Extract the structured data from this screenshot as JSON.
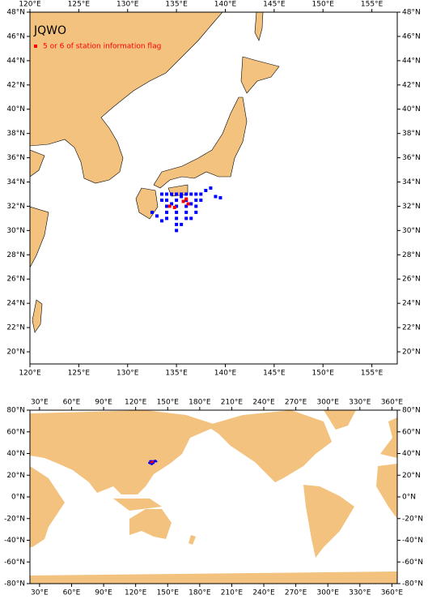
{
  "chart_data": [
    {
      "type": "map",
      "title": "JQWO",
      "xlim": [
        120,
        157.6
      ],
      "ylim": [
        19,
        48
      ],
      "xticks": [
        {
          "value": 120,
          "label": "120°E"
        },
        {
          "value": 125,
          "label": "125°E"
        },
        {
          "value": 130,
          "label": "130°E"
        },
        {
          "value": 135,
          "label": "135°E"
        },
        {
          "value": 140,
          "label": "140°E"
        },
        {
          "value": 145,
          "label": "145°E"
        },
        {
          "value": 150,
          "label": "150°E"
        },
        {
          "value": 155,
          "label": "155°E"
        }
      ],
      "yticks": [
        {
          "value": 20,
          "label": "20°N"
        },
        {
          "value": 22,
          "label": "22°N"
        },
        {
          "value": 24,
          "label": "24°N"
        },
        {
          "value": 26,
          "label": "26°N"
        },
        {
          "value": 28,
          "label": "28°N"
        },
        {
          "value": 30,
          "label": "30°N"
        },
        {
          "value": 32,
          "label": "32°N"
        },
        {
          "value": 34,
          "label": "34°N"
        },
        {
          "value": 36,
          "label": "36°N"
        },
        {
          "value": 38,
          "label": "38°N"
        },
        {
          "value": 40,
          "label": "40°N"
        },
        {
          "value": 42,
          "label": "42°N"
        },
        {
          "value": 44,
          "label": "44°N"
        },
        {
          "value": 46,
          "label": "46°N"
        },
        {
          "value": 48,
          "label": "48°N"
        }
      ],
      "series": [
        {
          "color": "#0000ff",
          "x": [
            133.5,
            134,
            134.5,
            135,
            135.5,
            136,
            136.5,
            137,
            137.5,
            138,
            138.5,
            139,
            139.5,
            134,
            134,
            134,
            134,
            133.5,
            133,
            132.5,
            135,
            135,
            135,
            135,
            135,
            135,
            136,
            136,
            136,
            136,
            135.5,
            137,
            137,
            137,
            136.5,
            133.5,
            134.5,
            135.5,
            136.5,
            137.5
          ],
          "y": [
            33,
            33,
            33,
            33,
            33,
            33,
            33,
            33,
            33,
            33.3,
            33.5,
            32.8,
            32.7,
            32.5,
            32,
            31.5,
            31,
            30.8,
            31.2,
            31.5,
            32.5,
            32,
            31.5,
            31,
            30.5,
            30,
            32.5,
            32,
            31.5,
            31,
            30.5,
            32.5,
            32,
            31.5,
            31,
            32.5,
            32.2,
            32.8,
            32.2,
            32.5
          ]
        },
        {
          "name": "5 or 6 of station information flag",
          "color": "#ff0000",
          "x": [
            134.3,
            135.7,
            136,
            134.8,
            136.2
          ],
          "y": [
            32,
            32.4,
            32.6,
            31.9,
            32.2
          ]
        }
      ]
    },
    {
      "type": "map",
      "xlim": [
        21,
        365
      ],
      "ylim": [
        -80,
        80
      ],
      "xticks": [
        {
          "value": 30,
          "label": "30°E"
        },
        {
          "value": 60,
          "label": "60°E"
        },
        {
          "value": 90,
          "label": "90°E"
        },
        {
          "value": 120,
          "label": "120°E"
        },
        {
          "value": 150,
          "label": "150°E"
        },
        {
          "value": 180,
          "label": "180°E"
        },
        {
          "value": 210,
          "label": "210°E"
        },
        {
          "value": 240,
          "label": "240°E"
        },
        {
          "value": 270,
          "label": "270°E"
        },
        {
          "value": 300,
          "label": "300°E"
        },
        {
          "value": 330,
          "label": "330°E"
        },
        {
          "value": 360,
          "label": "360°E"
        }
      ],
      "yticks": [
        {
          "value": -80,
          "label": "-80°N"
        },
        {
          "value": -60,
          "label": "-60°N"
        },
        {
          "value": -40,
          "label": "-40°N"
        },
        {
          "value": -20,
          "label": "-20°N"
        },
        {
          "value": 0,
          "label": "0°N"
        },
        {
          "value": 20,
          "label": "20°N"
        },
        {
          "value": 40,
          "label": "40°N"
        },
        {
          "value": 60,
          "label": "60°N"
        },
        {
          "value": 80,
          "label": "80°N"
        }
      ]
    }
  ]
}
